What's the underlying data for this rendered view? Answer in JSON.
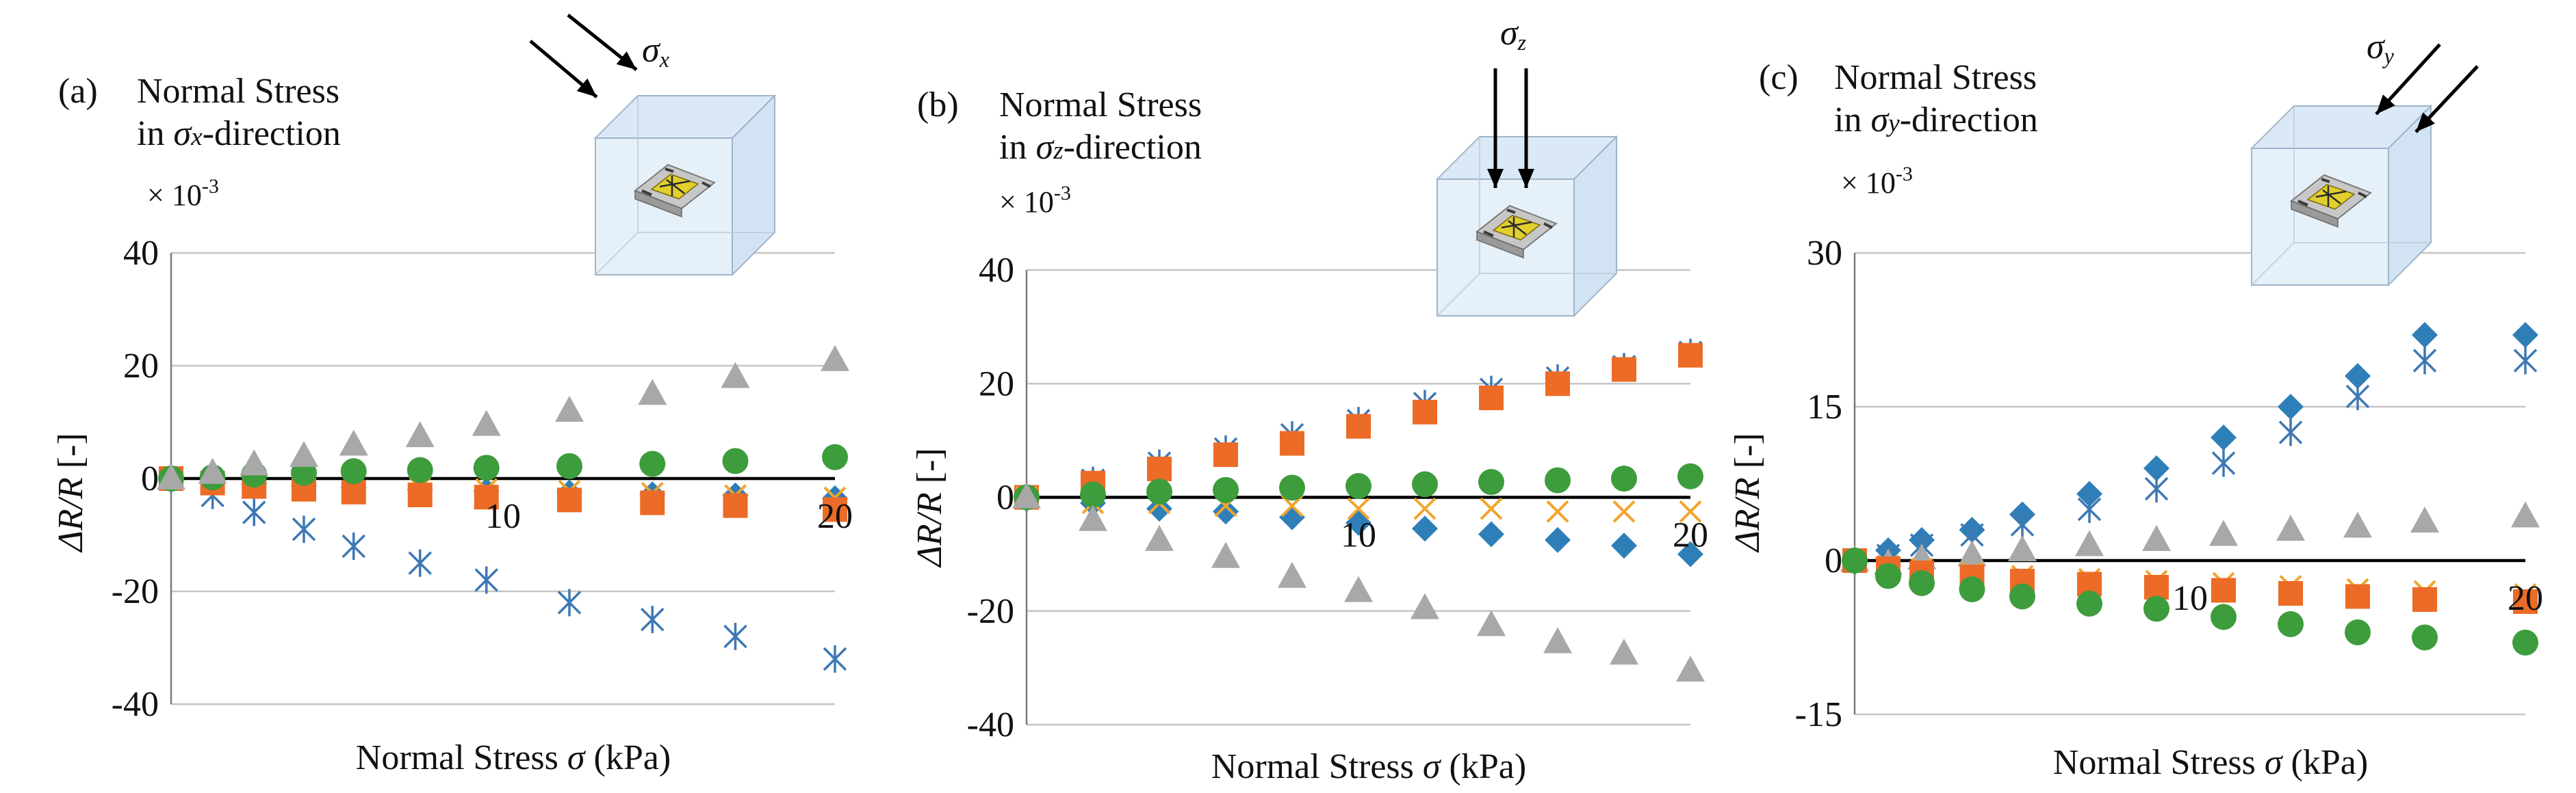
{
  "chart_data": [
    {
      "type": "scatter",
      "panel_label": "(a)",
      "title_line1": "Normal Stress",
      "title_line2_prefix": "in ",
      "title_sigma": "σ",
      "title_sub": "x",
      "title_line2_suffix": "-direction",
      "multiplier": "× 10",
      "multiplier_exp": "-3",
      "ylabel_main": "ΔR/R",
      "ylabel_unit": "[-]",
      "xlabel_prefix": "Normal Stress ",
      "xlabel_sigma": "σ",
      "xlabel_suffix": " (kPa)",
      "inset_sigma": "σ",
      "inset_sub": "x",
      "inset_direction": "x",
      "xlim": [
        0,
        20
      ],
      "ylim": [
        -40,
        40
      ],
      "yticks": [
        -40,
        -20,
        0,
        20,
        40
      ],
      "yticklabels": [
        "-40",
        "-20",
        "0",
        "20",
        "40"
      ],
      "xticks": [
        10,
        20
      ],
      "xticklabels": [
        "10",
        "20"
      ],
      "grid": true,
      "x": [
        0,
        1.25,
        2.5,
        4,
        5.5,
        7.5,
        9.5,
        12,
        14.5,
        17,
        20
      ],
      "series": [
        {
          "name": "asterisk",
          "marker": "asterisk",
          "color": "#3d78b4",
          "values": [
            0,
            -3,
            -6,
            -9,
            -12,
            -15,
            -18,
            -22,
            -25,
            -28,
            -32
          ]
        },
        {
          "name": "diamond",
          "marker": "diamond",
          "color": "#2e7fb8",
          "values": [
            0,
            -0.5,
            -1,
            -1.3,
            -1.6,
            -2,
            -2.2,
            -2.5,
            -2.8,
            -3,
            -3.5
          ]
        },
        {
          "name": "cross",
          "marker": "cross",
          "color": "#f0a52c",
          "values": [
            0,
            -0.3,
            -0.8,
            -1,
            -1.3,
            -1.6,
            -1.9,
            -2.2,
            -2.6,
            -3,
            -3.4
          ]
        },
        {
          "name": "square",
          "marker": "square",
          "color": "#ec6b26",
          "values": [
            0,
            -0.8,
            -1.4,
            -1.9,
            -2.4,
            -2.9,
            -3.3,
            -3.8,
            -4.3,
            -4.8,
            -5.5
          ]
        },
        {
          "name": "circle",
          "marker": "circle",
          "color": "#3d9c3c",
          "values": [
            0,
            0.2,
            0.7,
            1,
            1.3,
            1.5,
            1.9,
            2.2,
            2.6,
            3.1,
            3.8
          ]
        },
        {
          "name": "triangle",
          "marker": "triangle",
          "color": "#a8a8a8",
          "values": [
            0,
            1,
            2.5,
            4,
            6,
            7.5,
            9.5,
            12,
            15,
            18,
            21
          ]
        }
      ]
    },
    {
      "type": "scatter",
      "panel_label": "(b)",
      "title_line1": "Normal Stress",
      "title_line2_prefix": "in ",
      "title_sigma": "σ",
      "title_sub": "z",
      "title_line2_suffix": "-direction",
      "multiplier": "× 10",
      "multiplier_exp": "-3",
      "ylabel_main": "ΔR/R",
      "ylabel_unit": "[-]",
      "xlabel_prefix": "Normal Stress ",
      "xlabel_sigma": "σ",
      "xlabel_suffix": " (kPa)",
      "inset_sigma": "σ",
      "inset_sub": "z",
      "inset_direction": "z",
      "xlim": [
        0,
        20
      ],
      "ylim": [
        -40,
        40
      ],
      "yticks": [
        -40,
        -20,
        0,
        20,
        40
      ],
      "yticklabels": [
        "-40",
        "-20",
        "0",
        "20",
        "40"
      ],
      "xticks": [
        10,
        20
      ],
      "xticklabels": [
        "10",
        "20"
      ],
      "grid": true,
      "x": [
        0,
        2,
        4,
        6,
        8,
        10,
        12,
        14,
        16,
        18,
        20
      ],
      "series": [
        {
          "name": "asterisk",
          "marker": "asterisk",
          "color": "#3d78b4",
          "values": [
            0,
            3,
            6,
            8.5,
            11,
            13.5,
            16.5,
            19,
            21,
            23,
            25.5
          ]
        },
        {
          "name": "square",
          "marker": "square",
          "color": "#ec6b26",
          "values": [
            0,
            2.5,
            5,
            7.5,
            9.5,
            12.5,
            15,
            17.5,
            20,
            22.5,
            25
          ]
        },
        {
          "name": "diamond",
          "marker": "diamond",
          "color": "#2e7fb8",
          "values": [
            0,
            -1,
            -2,
            -2.5,
            -3.5,
            -4.5,
            -5.5,
            -6.5,
            -7.5,
            -8.5,
            -10
          ]
        },
        {
          "name": "cross",
          "marker": "cross",
          "color": "#f0a52c",
          "values": [
            0,
            -1,
            -1,
            -1.5,
            -1.5,
            -2,
            -2,
            -2,
            -2.5,
            -2.5,
            -2.5
          ]
        },
        {
          "name": "circle",
          "marker": "circle",
          "color": "#3d9c3c",
          "values": [
            0,
            0.5,
            1,
            1.3,
            1.7,
            2,
            2.3,
            2.7,
            3,
            3.3,
            3.7
          ]
        },
        {
          "name": "triangle",
          "marker": "triangle",
          "color": "#a8a8a8",
          "values": [
            0,
            -4,
            -7.5,
            -10.5,
            -14,
            -16.5,
            -19.5,
            -22.5,
            -25.5,
            -27.5,
            -30.5
          ]
        }
      ]
    },
    {
      "type": "scatter",
      "panel_label": "(c)",
      "title_line1": "Normal Stress",
      "title_line2_prefix": "in ",
      "title_sigma": "σ",
      "title_sub": "y",
      "title_line2_suffix": "-direction",
      "multiplier": "× 10",
      "multiplier_exp": "-3",
      "ylabel_main": "ΔR/R",
      "ylabel_unit": "[-]",
      "xlabel_prefix": "Normal Stress ",
      "xlabel_sigma": "σ",
      "xlabel_suffix": " (kPa)",
      "inset_sigma": "σ",
      "inset_sub": "y",
      "inset_direction": "y",
      "xlim": [
        0,
        20
      ],
      "ylim": [
        -15,
        30
      ],
      "yticks": [
        -15,
        0,
        15,
        30
      ],
      "yticklabels": [
        "-15",
        "0",
        "15",
        "30"
      ],
      "xticks": [
        10,
        20
      ],
      "xticklabels": [
        "10",
        "20"
      ],
      "grid": true,
      "x": [
        0,
        1,
        2,
        3.5,
        5,
        7,
        9,
        11,
        13,
        15,
        17,
        20
      ],
      "series": [
        {
          "name": "diamond",
          "marker": "diamond",
          "color": "#2e7fb8",
          "values": [
            0,
            1,
            2,
            3,
            4.5,
            6.5,
            9,
            12,
            15,
            18,
            22,
            22
          ]
        },
        {
          "name": "asterisk",
          "marker": "asterisk",
          "color": "#3d78b4",
          "values": [
            0,
            0.5,
            1.5,
            2.5,
            3.5,
            5,
            7,
            9.5,
            12.5,
            16,
            19.5,
            19.5
          ]
        },
        {
          "name": "triangle",
          "marker": "triangle",
          "color": "#a8a8a8",
          "values": [
            0,
            -0.3,
            0.2,
            0.5,
            1,
            1.5,
            2,
            2.5,
            3,
            3.3,
            3.8,
            4.3
          ]
        },
        {
          "name": "cross",
          "marker": "cross",
          "color": "#f0a52c",
          "values": [
            0,
            -0.5,
            -0.8,
            -1.2,
            -1.5,
            -1.8,
            -2,
            -2.2,
            -2.5,
            -2.8,
            -3,
            -3.3
          ]
        },
        {
          "name": "square",
          "marker": "square",
          "color": "#ec6b26",
          "values": [
            0,
            -0.8,
            -1.2,
            -1.6,
            -2,
            -2.3,
            -2.6,
            -2.9,
            -3.2,
            -3.5,
            -3.8,
            -4
          ]
        },
        {
          "name": "circle",
          "marker": "circle",
          "color": "#3d9c3c",
          "values": [
            0,
            -1.5,
            -2.2,
            -2.8,
            -3.5,
            -4.2,
            -4.7,
            -5.5,
            -6.2,
            -7,
            -7.5,
            -8
          ]
        }
      ]
    }
  ]
}
